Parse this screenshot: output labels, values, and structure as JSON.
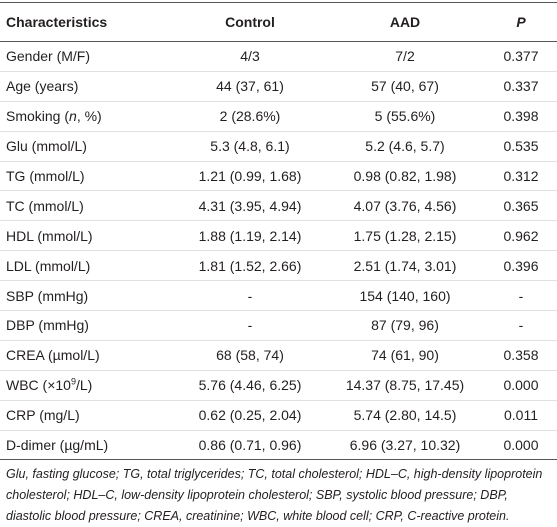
{
  "table": {
    "header": [
      "Characteristics",
      "Control",
      "AAD",
      "P"
    ],
    "rows": [
      [
        "Gender (M/F)",
        "4/3",
        "7/2",
        "0.377"
      ],
      [
        "Age (years)",
        "44 (37, 61)",
        "57 (40, 67)",
        "0.337"
      ],
      [
        [
          "Smoking (",
          "n",
          ", %)"
        ],
        "2 (28.6%)",
        "5 (55.6%)",
        "0.398"
      ],
      [
        "Glu (mmol/L)",
        "5.3 (4.8, 6.1)",
        "5.2 (4.6, 5.7)",
        "0.535"
      ],
      [
        "TG (mmol/L)",
        "1.21 (0.99, 1.68)",
        "0.98 (0.82, 1.98)",
        "0.312"
      ],
      [
        "TC (mmol/L)",
        "4.31 (3.95, 4.94)",
        "4.07 (3.76, 4.56)",
        "0.365"
      ],
      [
        "HDL (mmol/L)",
        "1.88 (1.19, 2.14)",
        "1.75 (1.28, 2.15)",
        "0.962"
      ],
      [
        "LDL (mmol/L)",
        "1.81 (1.52, 2.66)",
        "2.51 (1.74, 3.01)",
        "0.396"
      ],
      [
        "SBP (mmHg)",
        "-",
        "154 (140, 160)",
        "-"
      ],
      [
        "DBP (mmHg)",
        "-",
        "87 (79, 96)",
        "-"
      ],
      [
        "CREA (µmol/L)",
        "68 (58, 74)",
        "74 (61, 90)",
        "0.358"
      ],
      [
        [
          "WBC (×10",
          "9",
          "/L)"
        ],
        "5.76 (4.46, 6.25)",
        "14.37 (8.75, 17.45)",
        "0.000"
      ],
      [
        "CRP (mg/L)",
        "0.62 (0.25, 2.04)",
        "5.74 (2.80, 14.5)",
        "0.011"
      ],
      [
        "D-dimer (µg/mL)",
        "0.86 (0.71, 0.96)",
        "6.96 (3.27, 10.32)",
        "0.000"
      ]
    ],
    "footnote": "Glu, fasting glucose; TG, total triglycerides; TC, total cholesterol; HDL–C, high-density lipoprotein cholesterol; HDL–C, low-density lipoprotein cholesterol; SBP, systolic blood pressure; DBP, diastolic blood pressure; CREA, creatinine; WBC, white blood cell; CRP, C-reactive protein."
  }
}
